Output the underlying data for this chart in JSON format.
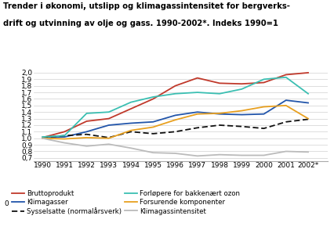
{
  "title_line1": "Trender i økonomi, utslipp og klimagassintensitet for bergverks-",
  "title_line2": "drift og utvinning av olje og gass. 1990-2002*. Indeks 1990=1",
  "years": [
    1990,
    1991,
    1992,
    1993,
    1994,
    1995,
    1996,
    1997,
    1998,
    1999,
    2000,
    2001,
    2002
  ],
  "bruttoprodukt": [
    1.01,
    1.1,
    1.26,
    1.3,
    1.45,
    1.6,
    1.8,
    1.92,
    1.84,
    1.83,
    1.85,
    1.97,
    2.0
  ],
  "klimagasser": [
    1.01,
    1.02,
    1.1,
    1.2,
    1.23,
    1.25,
    1.35,
    1.4,
    1.37,
    1.36,
    1.37,
    1.58,
    1.54
  ],
  "sysselsatte": [
    1.01,
    1.04,
    1.06,
    1.01,
    1.1,
    1.07,
    1.1,
    1.16,
    1.2,
    1.18,
    1.15,
    1.25,
    1.29
  ],
  "forlopere": [
    1.02,
    1.04,
    1.38,
    1.4,
    1.55,
    1.63,
    1.68,
    1.7,
    1.68,
    1.75,
    1.9,
    1.93,
    1.68
  ],
  "forsurende": [
    1.0,
    0.99,
    1.01,
    1.0,
    1.12,
    1.17,
    1.28,
    1.37,
    1.38,
    1.42,
    1.48,
    1.5,
    1.3
  ],
  "klimagassintensitet": [
    1.0,
    0.93,
    0.88,
    0.91,
    0.85,
    0.78,
    0.77,
    0.73,
    0.75,
    0.74,
    0.74,
    0.8,
    0.79
  ],
  "color_bruttoprodukt": "#c0392b",
  "color_klimagasser": "#2255aa",
  "color_sysselsatte": "#111111",
  "color_forlopere": "#3bbfb2",
  "color_forsurende": "#e8a020",
  "color_klimagassintensitet": "#bbbbbb",
  "ylim": [
    0.65,
    2.05
  ],
  "yticks": [
    0.7,
    0.8,
    0.9,
    1.0,
    1.1,
    1.2,
    1.3,
    1.4,
    1.5,
    1.6,
    1.7,
    1.8,
    1.9,
    2.0
  ],
  "legend_col1": [
    "Bruttoprodukt",
    "Klimagasser",
    "Sysselsatte (normalårsverk)"
  ],
  "legend_col2": [
    "Forløpere for bakkenært ozon",
    "Forsurende komponenter",
    "Klimagassintensitet"
  ]
}
